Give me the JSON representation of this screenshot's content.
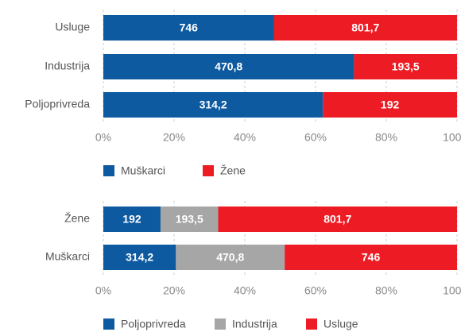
{
  "chart_data": [
    {
      "type": "stacked-bar-100",
      "categories": [
        "Usluge",
        "Industrija",
        "Poljoprivreda"
      ],
      "series": [
        {
          "name": "Muškarci",
          "color": "#0d5aa0",
          "values": [
            746,
            470.8,
            314.2
          ],
          "value_labels": [
            "746",
            "470,8",
            "314,2"
          ]
        },
        {
          "name": "Žene",
          "color": "#ed1c24",
          "values": [
            801.7,
            193.5,
            192
          ],
          "value_labels": [
            "801,7",
            "193,5",
            "192"
          ]
        }
      ],
      "xlim": [
        0,
        100
      ],
      "xticks": [
        {
          "value": 0,
          "label": "0%"
        },
        {
          "value": 20,
          "label": "20%"
        },
        {
          "value": 40,
          "label": "40%"
        },
        {
          "value": 60,
          "label": "60%"
        },
        {
          "value": 80,
          "label": "80%"
        },
        {
          "value": 100,
          "label": "100%"
        }
      ],
      "grid": true,
      "legend": "bottom"
    },
    {
      "type": "stacked-bar-100",
      "categories": [
        "Žene",
        "Muškarci"
      ],
      "series": [
        {
          "name": "Poljoprivreda",
          "color": "#0d5aa0",
          "values": [
            192,
            314.2
          ],
          "value_labels": [
            "192",
            "314,2"
          ]
        },
        {
          "name": "Industrija",
          "color": "#a6a6a6",
          "values": [
            193.5,
            470.8
          ],
          "value_labels": [
            "193,5",
            "470,8"
          ]
        },
        {
          "name": "Usluge",
          "color": "#ed1c24",
          "values": [
            801.7,
            746
          ],
          "value_labels": [
            "801,7",
            "746"
          ]
        }
      ],
      "xlim": [
        0,
        100
      ],
      "xticks": [
        {
          "value": 0,
          "label": "0%"
        },
        {
          "value": 20,
          "label": "20%"
        },
        {
          "value": 40,
          "label": "40%"
        },
        {
          "value": 60,
          "label": "60%"
        },
        {
          "value": 80,
          "label": "80%"
        },
        {
          "value": 100,
          "label": "100%"
        }
      ],
      "grid": true,
      "legend": "bottom"
    }
  ]
}
